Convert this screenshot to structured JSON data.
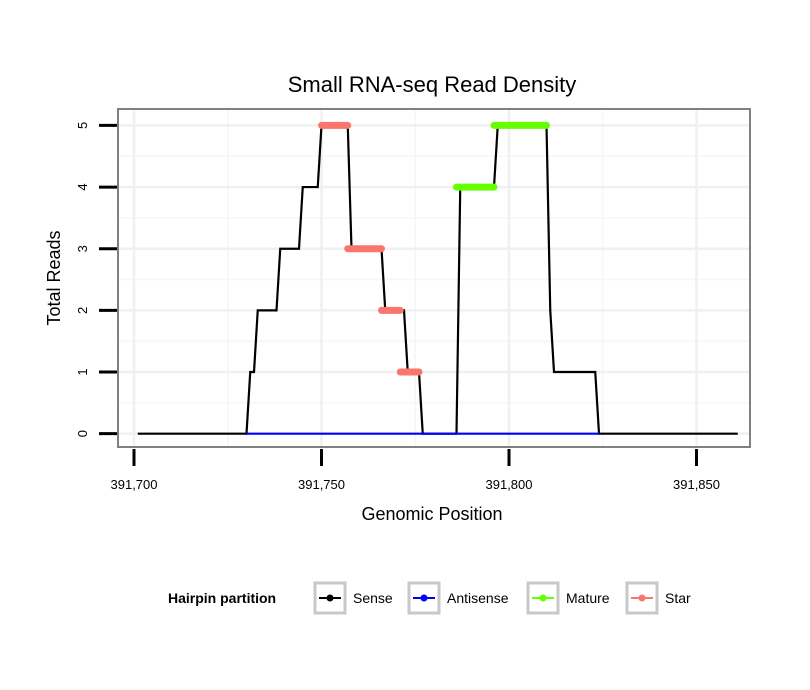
{
  "chart_data": {
    "type": "line",
    "title": "Small RNA-seq Read Density",
    "xlabel": "Genomic Position",
    "ylabel": "Total Reads",
    "xlim": [
      391696,
      391864
    ],
    "ylim": [
      -0.2,
      5.25
    ],
    "x_ticks": [
      391700,
      391750,
      391800,
      391850
    ],
    "x_tick_labels": [
      "391,700",
      "391,750",
      "391,800",
      "391,850"
    ],
    "y_ticks": [
      0,
      1,
      2,
      3,
      4,
      5
    ],
    "y_tick_labels": [
      "0",
      "1",
      "2",
      "3",
      "4",
      "5"
    ],
    "grid": true,
    "legend": {
      "title": "Hairpin partition",
      "position": "bottom",
      "entries": [
        {
          "label": "Sense",
          "color": "#000000"
        },
        {
          "label": "Antisense",
          "color": "#0000ff"
        },
        {
          "label": "Mature",
          "color": "#66ff00"
        },
        {
          "label": "Star",
          "color": "#f8766d"
        }
      ]
    },
    "series": [
      {
        "name": "Sense",
        "color": "#000000",
        "points": [
          [
            391701,
            0
          ],
          [
            391730,
            0
          ],
          [
            391731,
            1
          ],
          [
            391732,
            1
          ],
          [
            391733,
            2
          ],
          [
            391738,
            2
          ],
          [
            391739,
            3
          ],
          [
            391744,
            3
          ],
          [
            391745,
            4
          ],
          [
            391749,
            4
          ],
          [
            391750,
            5
          ],
          [
            391757,
            5
          ],
          [
            391758,
            3
          ],
          [
            391766,
            3
          ],
          [
            391767,
            2
          ],
          [
            391772,
            2
          ],
          [
            391773,
            1
          ],
          [
            391776,
            1
          ],
          [
            391777,
            0
          ],
          [
            391786,
            0
          ],
          [
            391787,
            4
          ],
          [
            391796,
            4
          ],
          [
            391797,
            5
          ],
          [
            391810,
            5
          ],
          [
            391811,
            2
          ],
          [
            391812,
            1
          ],
          [
            391823,
            1
          ],
          [
            391824,
            0
          ],
          [
            391861,
            0
          ]
        ]
      },
      {
        "name": "Antisense",
        "color": "#0000ff",
        "points": [
          [
            391730,
            0
          ],
          [
            391824,
            0
          ]
        ]
      },
      {
        "name": "Mature",
        "color": "#66ff00",
        "segments": [
          {
            "x_start": 391786,
            "x_end": 391796,
            "y": 4
          },
          {
            "x_start": 391796,
            "x_end": 391810,
            "y": 5
          }
        ]
      },
      {
        "name": "Star",
        "color": "#f8766d",
        "segments": [
          {
            "x_start": 391750,
            "x_end": 391757,
            "y": 5
          },
          {
            "x_start": 391757,
            "x_end": 391766,
            "y": 3
          },
          {
            "x_start": 391766,
            "x_end": 391771,
            "y": 2
          },
          {
            "x_start": 391771,
            "x_end": 391776,
            "y": 1
          }
        ]
      }
    ]
  }
}
